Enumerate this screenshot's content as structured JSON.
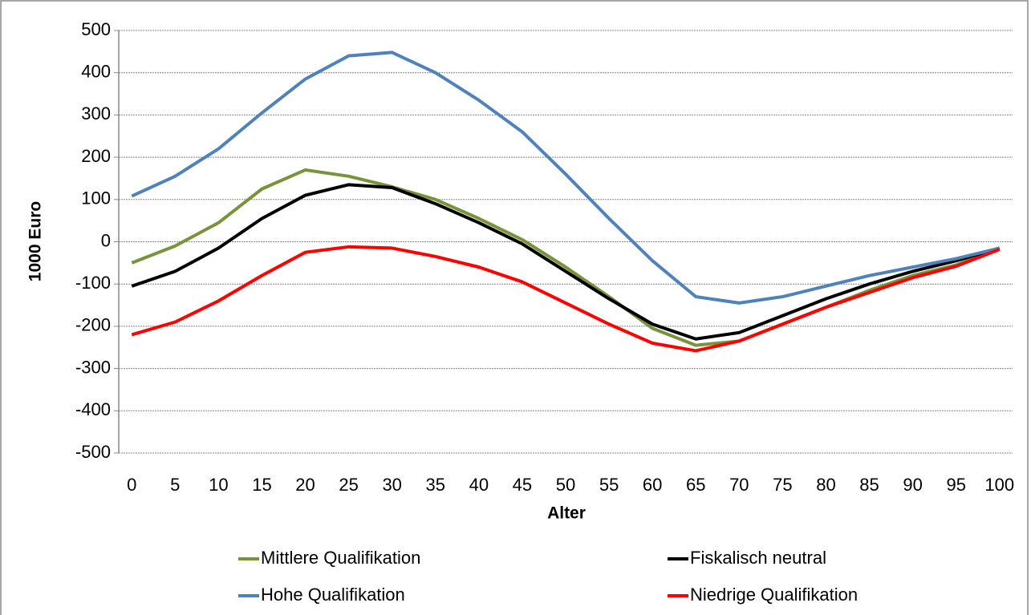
{
  "chart_data": {
    "type": "line",
    "x_label": "Alter",
    "y_label": "1000 Euro",
    "x": [
      0,
      5,
      10,
      15,
      20,
      25,
      30,
      35,
      40,
      45,
      50,
      55,
      60,
      65,
      70,
      75,
      80,
      85,
      90,
      95,
      100
    ],
    "series": [
      {
        "name": "Mittlere Qualifikation",
        "color": "#77933c",
        "values": [
          -50,
          -10,
          45,
          125,
          170,
          155,
          130,
          100,
          55,
          5,
          -60,
          -130,
          -205,
          -245,
          -235,
          -195,
          -155,
          -115,
          -80,
          -55,
          -15
        ]
      },
      {
        "name": "Fiskalisch neutral",
        "color": "#000000",
        "values": [
          -105,
          -70,
          -15,
          55,
          110,
          135,
          128,
          90,
          45,
          -5,
          -70,
          -135,
          -195,
          -230,
          -215,
          -175,
          -135,
          -100,
          -70,
          -45,
          -15
        ]
      },
      {
        "name": "Hohe Qualifikation",
        "color": "#4f81bd",
        "values": [
          108,
          155,
          220,
          305,
          385,
          440,
          448,
          400,
          335,
          260,
          160,
          55,
          -45,
          -130,
          -145,
          -130,
          -105,
          -80,
          -60,
          -40,
          -15
        ]
      },
      {
        "name": "Niedrige Qualifikation",
        "color": "#ff0000",
        "values": [
          -220,
          -190,
          -140,
          -80,
          -25,
          -12,
          -15,
          -35,
          -60,
          -95,
          -145,
          -195,
          -240,
          -258,
          -235,
          -195,
          -155,
          -120,
          -85,
          -58,
          -18
        ]
      }
    ],
    "xlim": [
      -1.5,
      101.5
    ],
    "xticks": [
      0,
      5,
      10,
      15,
      20,
      25,
      30,
      35,
      40,
      45,
      50,
      55,
      60,
      65,
      70,
      75,
      80,
      85,
      90,
      95,
      100
    ],
    "ylim": [
      -500,
      500
    ],
    "yticks": [
      -500,
      -400,
      -300,
      -200,
      -100,
      0,
      100,
      200,
      300,
      400,
      500
    ],
    "grid": true,
    "legend": "bottom"
  }
}
